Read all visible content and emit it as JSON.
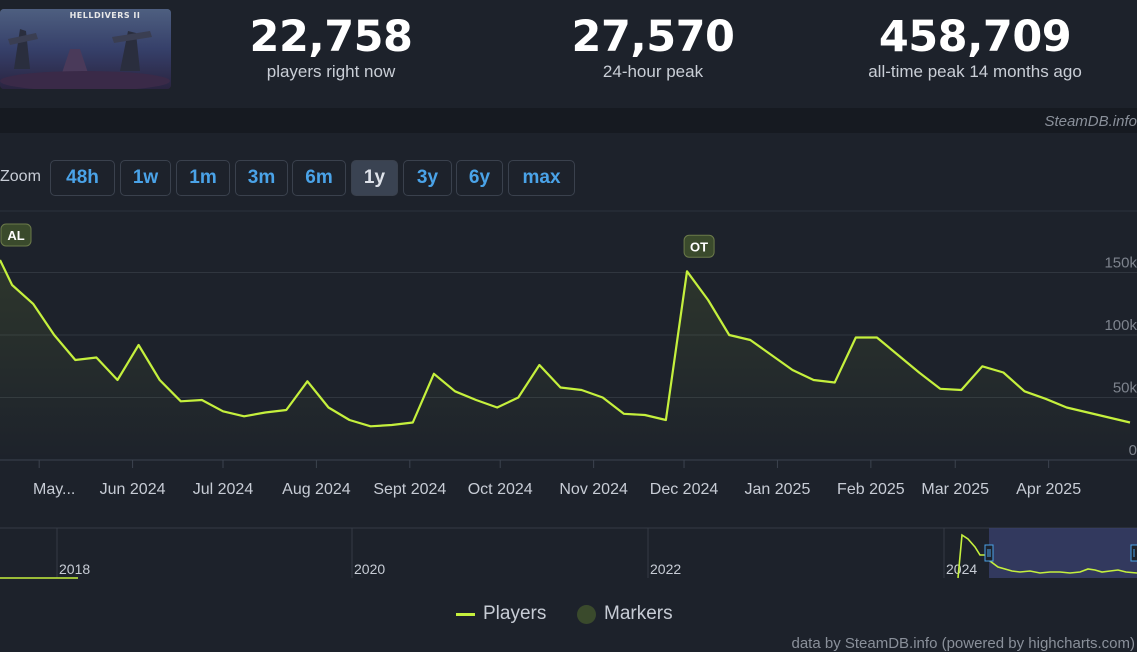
{
  "header": {
    "game_logo_text": "HELLDIVERS II",
    "stats": [
      {
        "value": "22,758",
        "label": "players right now"
      },
      {
        "value": "27,570",
        "label": "24-hour peak"
      },
      {
        "value": "458,709",
        "label": "all-time peak 14 months ago"
      }
    ]
  },
  "watermark": "SteamDB.info",
  "zoom": {
    "label": "Zoom",
    "buttons": [
      "48h",
      "1w",
      "1m",
      "3m",
      "6m",
      "1y",
      "3y",
      "6y",
      "max"
    ],
    "active": "1y"
  },
  "legend": {
    "players": "Players",
    "markers": "Markers"
  },
  "credit": "data by SteamDB.info (powered by highcharts.com)",
  "colors": {
    "line": "#c5f03d",
    "background": "#1d222b",
    "marker_bg": "#3a4a2c",
    "zoom_text": "#4aa3e8"
  },
  "navigator": {
    "year_labels": [
      "2018",
      "2020",
      "2022",
      "2024"
    ]
  },
  "chart_data": {
    "type": "line",
    "series": [
      {
        "name": "Players",
        "x": [
          "2024-04-18",
          "2024-04-22",
          "2024-04-29",
          "2024-05-06",
          "2024-05-13",
          "2024-05-20",
          "2024-05-27",
          "2024-06-03",
          "2024-06-10",
          "2024-06-17",
          "2024-06-24",
          "2024-07-01",
          "2024-07-08",
          "2024-07-15",
          "2024-07-22",
          "2024-07-29",
          "2024-08-05",
          "2024-08-12",
          "2024-08-19",
          "2024-08-26",
          "2024-09-02",
          "2024-09-09",
          "2024-09-16",
          "2024-09-23",
          "2024-09-30",
          "2024-10-07",
          "2024-10-14",
          "2024-10-21",
          "2024-10-28",
          "2024-11-04",
          "2024-11-11",
          "2024-11-18",
          "2024-11-25",
          "2024-12-02",
          "2024-12-09",
          "2024-12-16",
          "2024-12-23",
          "2024-12-30",
          "2025-01-06",
          "2025-01-13",
          "2025-01-20",
          "2025-01-27",
          "2025-02-03",
          "2025-02-10",
          "2025-02-17",
          "2025-02-24",
          "2025-03-03",
          "2025-03-10",
          "2025-03-17",
          "2025-03-24",
          "2025-03-31",
          "2025-04-07",
          "2025-04-14",
          "2025-04-21",
          "2025-04-28"
        ],
        "values": [
          160000,
          140000,
          125000,
          100000,
          80000,
          82000,
          64000,
          92000,
          64000,
          47000,
          48000,
          39000,
          35000,
          38000,
          40000,
          63000,
          42000,
          32000,
          27000,
          28000,
          30000,
          69000,
          55000,
          48000,
          42000,
          50000,
          76000,
          58000,
          56000,
          50000,
          37000,
          36000,
          32000,
          151000,
          128000,
          100000,
          96000,
          84000,
          72000,
          64000,
          62000,
          98000,
          98000,
          84000,
          70000,
          57000,
          56000,
          75000,
          70000,
          55000,
          49000,
          42000,
          38000,
          34000,
          30000
        ]
      }
    ],
    "markers": [
      {
        "label": "AL",
        "x": "2024-04-18"
      },
      {
        "label": "OT",
        "x": "2024-12-06"
      }
    ],
    "xaxis_ticks": [
      "May...",
      "Jun 2024",
      "Jul 2024",
      "Aug 2024",
      "Sept 2024",
      "Oct 2024",
      "Nov 2024",
      "Dec 2024",
      "Jan 2025",
      "Feb 2025",
      "Mar 2025",
      "Apr 2025"
    ],
    "yaxis_ticks": [
      "0",
      "50k",
      "100k",
      "150k"
    ],
    "ylim": [
      0,
      160000
    ],
    "grid": true,
    "legend_position": "bottom-center"
  }
}
